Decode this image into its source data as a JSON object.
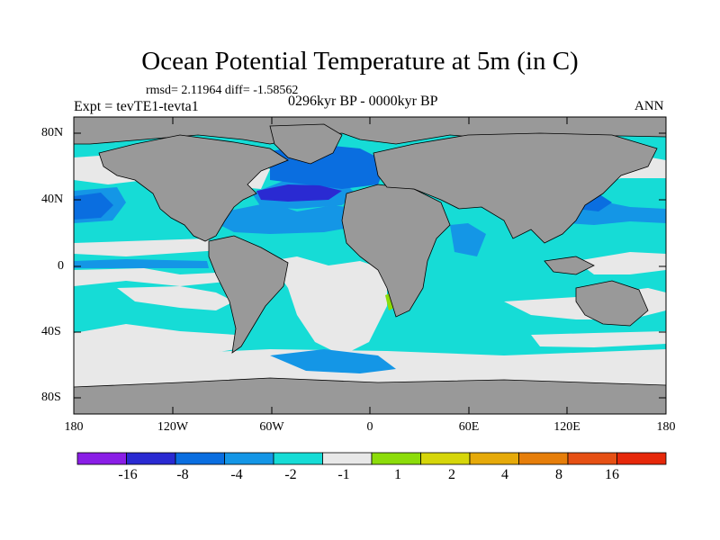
{
  "title": "Ocean Potential Temperature at 5m (in C)",
  "stats": "rmsd= 2.11964  diff= -1.58562",
  "experiment": "Expt = tevTE1-tevta1",
  "period": "0296kyr BP - 0000kyr BP",
  "season": "ANN",
  "lat_labels": [
    "80N",
    "40N",
    "0",
    "40S",
    "80S"
  ],
  "lon_labels": [
    "180",
    "120W",
    "60W",
    "0",
    "60E",
    "120E",
    "180"
  ],
  "colorbar": {
    "colors": [
      "#8a1ee6",
      "#2a2ad2",
      "#0a6ee0",
      "#1496e6",
      "#16dcd6",
      "#e8e8e8",
      "#8cdc0a",
      "#d6d60a",
      "#e6aa0a",
      "#e67e0a",
      "#e65014",
      "#e6280a"
    ],
    "labels": [
      "-16",
      "-8",
      "-4",
      "-2",
      "-1",
      "1",
      "2",
      "4",
      "8",
      "16"
    ]
  },
  "colors": {
    "land": "#999999",
    "near_zero": "#e8e8e8",
    "cool_1": "#16dcd6",
    "cool_2": "#1496e6",
    "cool_4": "#0a6ee0",
    "cool_8": "#2a2ad2",
    "warm_2": "#8cdc0a"
  }
}
